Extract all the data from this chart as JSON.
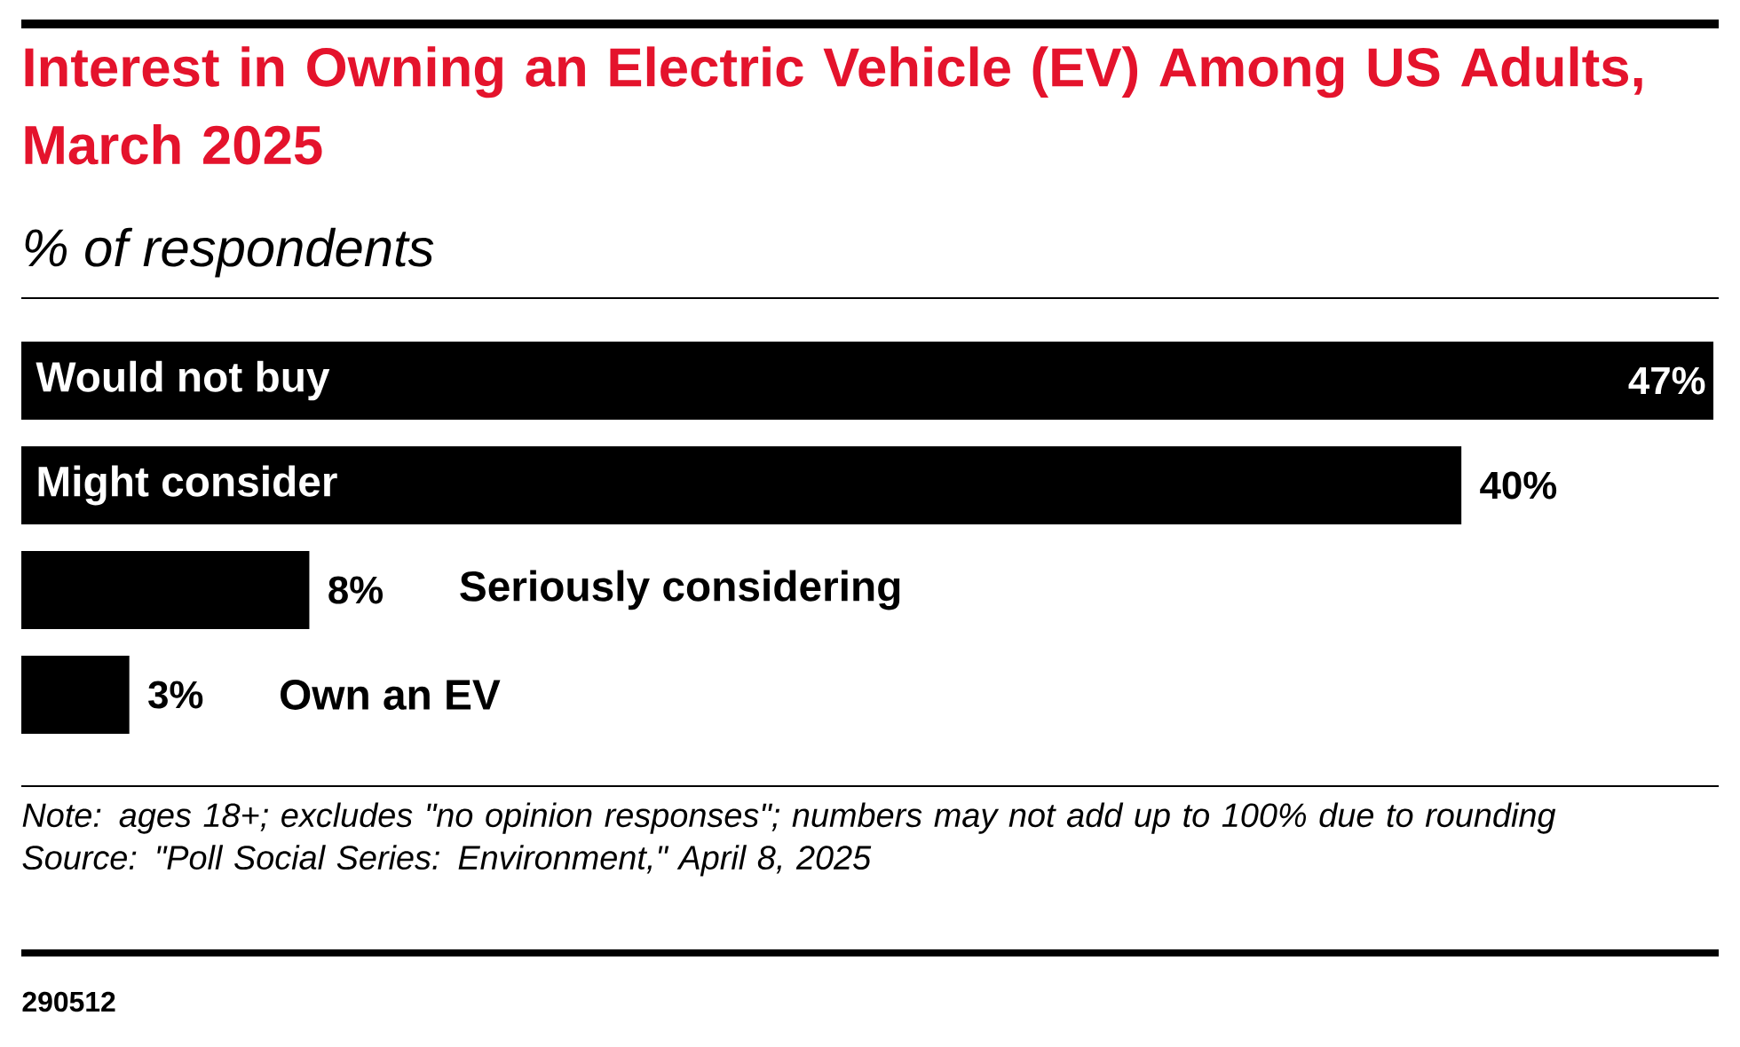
{
  "chart_data": {
    "type": "bar",
    "orientation": "horizontal",
    "title": "Interest in Owning an Electric Vehicle (EV) Among US Adults, March 2025",
    "subtitle": "% of respondents",
    "categories": [
      "Would not buy",
      "Might consider",
      "Seriously considering",
      "Own an EV"
    ],
    "values": [
      47,
      40,
      8,
      3
    ],
    "value_labels": [
      "47%",
      "40%",
      "8%",
      "3%"
    ],
    "color": "#000000",
    "annotations": [
      "Note: ages 18+; excludes \"no opinion responses\"; numbers may not add up to 100% due to rounding",
      "Source: \"Poll Social Series: Environment,\" April 8, 2025",
      "290512"
    ]
  }
}
